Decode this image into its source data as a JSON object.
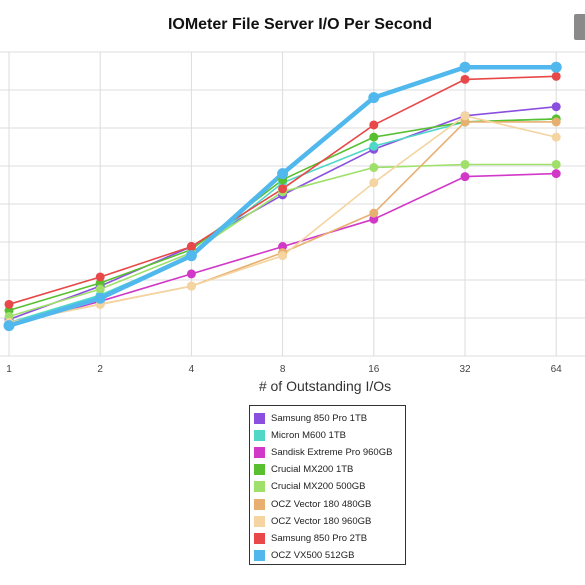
{
  "title": "IOMeter File Server I/O Per Second",
  "chart_data": {
    "type": "line",
    "title": "IOMeter File Server I/O Per Second",
    "xlabel": "# of Outstanding I/Os",
    "ylabel": "",
    "categories": [
      "1",
      "2",
      "4",
      "8",
      "16",
      "32",
      "64"
    ],
    "ylim": [
      0,
      100
    ],
    "grid": true,
    "legend_position": "bottom",
    "series": [
      {
        "name": "Samsung 850 Pro 1TB",
        "color": "#8b4fe0",
        "values": [
          12,
          23,
          36,
          53,
          68,
          79,
          82
        ]
      },
      {
        "name": "Micron M600 1TB",
        "color": "#4fd8c8",
        "values": [
          11,
          20,
          33,
          57,
          69,
          77,
          78
        ]
      },
      {
        "name": "Sandisk Extreme Pro 960GB",
        "color": "#d238c8",
        "values": [
          10,
          18,
          27,
          36,
          45,
          59,
          60
        ]
      },
      {
        "name": "Crucial MX200 1TB",
        "color": "#58c030",
        "values": [
          15,
          24,
          35,
          58,
          72,
          77,
          78
        ]
      },
      {
        "name": "Crucial MX200 500GB",
        "color": "#9ee06a",
        "values": [
          13,
          22,
          34,
          54,
          62,
          63,
          63
        ]
      },
      {
        "name": "OCZ Vector 180 480GB",
        "color": "#e8b070",
        "values": [
          11,
          17,
          23,
          34,
          47,
          77,
          77
        ]
      },
      {
        "name": "OCZ Vector 180 960GB",
        "color": "#f4d4a0",
        "values": [
          11,
          17,
          23,
          33,
          57,
          79,
          72
        ]
      },
      {
        "name": "Samsung 850 Pro 2TB",
        "color": "#e84848",
        "values": [
          17,
          26,
          36,
          55,
          76,
          91,
          92
        ]
      },
      {
        "name": "OCZ VX500 512GB",
        "color": "#50b8ec",
        "values": [
          10,
          19,
          33,
          60,
          85,
          95,
          95
        ]
      }
    ]
  }
}
